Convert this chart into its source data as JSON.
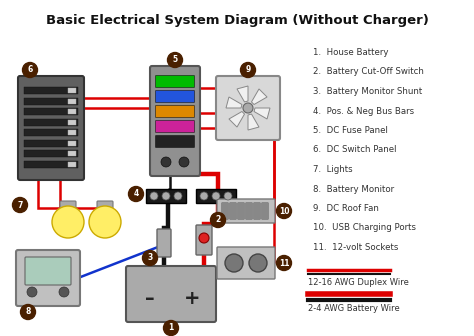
{
  "title": "Basic Electrical System Diagram (Without Charger)",
  "bg_color": "#ffffff",
  "legend_items": [
    "House Battery",
    "Battery Cut-Off Switch",
    "Battery Monitor Shunt",
    "Pos. & Neg Bus Bars",
    "DC Fuse Panel",
    "DC Switch Panel",
    "Lights",
    "Battery Monitor",
    "DC Roof Fan",
    "USB Charging Ports",
    "12-volt Sockets"
  ],
  "dark_brown": "#4a2000",
  "gray_panel": "#707070",
  "dark_gray": "#444444",
  "light_gray": "#aaaaaa",
  "silver": "#c0c0c0",
  "fuse_colors": [
    "#00bb00",
    "#2255dd",
    "#dd8800",
    "#cc2299",
    "#222222"
  ],
  "red_wire": "#dd0000",
  "black_wire": "#111111",
  "blue_wire": "#1133cc",
  "yellow_light": "#ffee66",
  "number_bg": "#4a2000",
  "number_fg": "#ffffff",
  "diagram_bg": "#f8f8f8"
}
